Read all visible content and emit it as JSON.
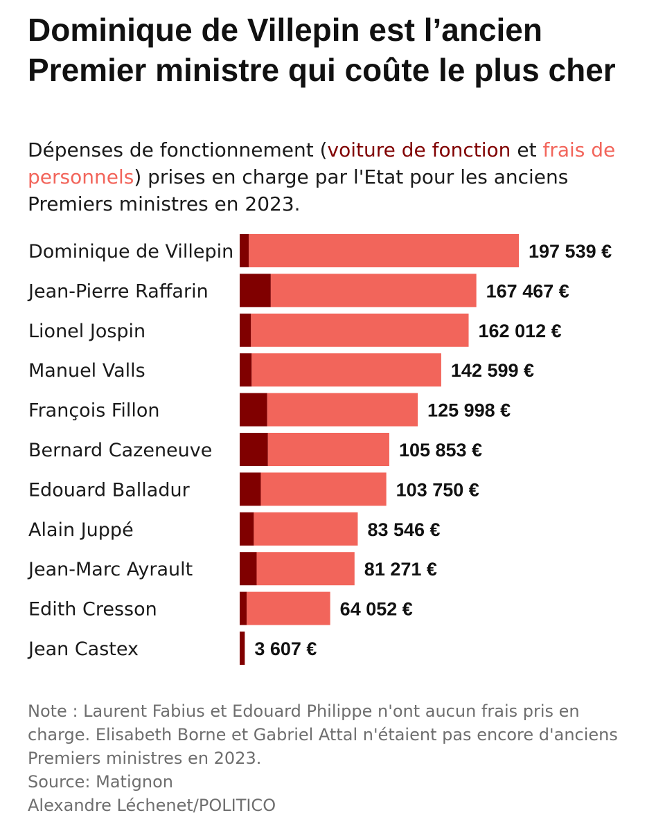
{
  "title": "Dominique de Villepin est l’ancien Premier ministre qui coûte le plus cher",
  "subtitle": {
    "prefix": "Dépenses de fonctionnement (",
    "voiture": "voiture de fonction",
    "et": " et ",
    "frais": "frais de personnels",
    "suffix": ") prises en charge par l'Etat pour les anciens Premiers ministres en 2023."
  },
  "colors": {
    "voiture": "#800000",
    "frais": "#f2655b"
  },
  "chart_data": {
    "type": "bar",
    "orientation": "horizontal",
    "stacked": true,
    "categories": [
      "Dominique de Villepin",
      "Jean-Pierre Raffarin",
      "Lionel Jospin",
      "Manuel Valls",
      "François Fillon",
      "Bernard Cazeneuve",
      "Edouard Balladur",
      "Alain Juppé",
      "Jean-Marc Ayrault",
      "Edith Cresson",
      "Jean Castex"
    ],
    "series": [
      {
        "values": [
          6500,
          22000,
          8000,
          8500,
          19500,
          20000,
          15000,
          10000,
          12000,
          5000,
          3607
        ]
      },
      {
        "values": [
          191039,
          145467,
          154012,
          134099,
          106498,
          85853,
          88750,
          73546,
          69271,
          59052,
          0
        ]
      }
    ],
    "totals": [
      197539,
      167467,
      162012,
      142599,
      125998,
      105853,
      103750,
      83546,
      81271,
      64052,
      3607
    ],
    "total_labels": [
      "197 539 €",
      "167 467 €",
      "162 012 €",
      "142 599 €",
      "125 998 €",
      "105 853 €",
      "103 750 €",
      "83 546 €",
      "81 271 €",
      "64 052 €",
      "3 607 €"
    ],
    "xlim": [
      0,
      197539
    ],
    "grid": false,
    "legend": "none"
  },
  "notes": {
    "note": "Note : Laurent Fabius et Edouard Philippe n'ont aucun frais pris en charge. Elisabeth Borne et Gabriel Attal n'étaient pas encore d'anciens Premiers ministres en 2023.",
    "source": "Source: Matignon",
    "credit": "Alexandre Léchenet/POLITICO"
  }
}
